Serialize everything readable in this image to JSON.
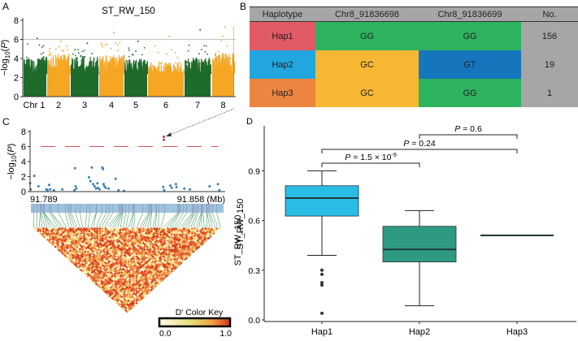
{
  "panel_labels": {
    "a": "A",
    "b": "B",
    "c": "C",
    "d": "D"
  },
  "colors": {
    "green_dark": "#1e6b2a",
    "orange": "#f5a623",
    "threshold_gray": "#b0b0b0",
    "red_dash": "#d9534f",
    "blue_point": "#3d7fb5",
    "sig_point": "#c0504d",
    "hap1_box": "#29bde6",
    "hap2_box": "#2e9a82"
  },
  "table": {
    "headers": [
      "Haplotype",
      "Chr8_91836698",
      "Chr8_91836699",
      "No."
    ],
    "rows": [
      {
        "cells": [
          "Hap1",
          "GG",
          "GG",
          "156"
        ],
        "colors": [
          "#e05a66",
          "#2db35e",
          "#2db35e",
          "#a6a6a6"
        ]
      },
      {
        "cells": [
          "Hap2",
          "GC",
          "GT",
          "19"
        ],
        "colors": [
          "#22a6e0",
          "#f7b733",
          "#1576bd",
          "#a6a6a6"
        ]
      },
      {
        "cells": [
          "Hap3",
          "GC",
          "GG",
          "1"
        ],
        "colors": [
          "#ec8540",
          "#f7b733",
          "#2db35e",
          "#a6a6a6"
        ]
      }
    ]
  },
  "chart_data": [
    {
      "id": "A",
      "type": "scatter",
      "title": "ST_RW_150",
      "xlabel": "",
      "ylabel": "-log10(P)",
      "ylim": [
        0,
        8
      ],
      "yticks": [
        "0",
        "2",
        "4",
        "6",
        "8"
      ],
      "threshold": 6,
      "chromosomes": [
        {
          "label": "Chr 1",
          "color": "green",
          "typical_max": 3.6,
          "peak": 6.1
        },
        {
          "label": "2",
          "color": "orange",
          "typical_max": 3.9,
          "peak": 5.8
        },
        {
          "label": "3",
          "color": "green",
          "typical_max": 3.7,
          "peak": 5.6
        },
        {
          "label": "4",
          "color": "orange",
          "typical_max": 3.8,
          "peak": 6.7
        },
        {
          "label": "5",
          "color": "green",
          "typical_max": 3.4,
          "peak": 5.8
        },
        {
          "label": "6",
          "color": "orange",
          "typical_max": 3.0,
          "peak": 6.3
        },
        {
          "label": "7",
          "color": "green",
          "typical_max": 3.5,
          "peak": 7.0
        },
        {
          "label": "8",
          "color": "orange",
          "typical_max": 4.0,
          "peak": 7.3
        }
      ]
    },
    {
      "id": "C",
      "type": "scatter",
      "xlabel": "",
      "ylabel": "-log10(P)",
      "ylim": [
        0,
        8
      ],
      "yticks": [
        "0",
        "2",
        "4",
        "6",
        "8"
      ],
      "x_range_label_left": "91.789",
      "x_range_label_right": "91.858 (Mb)",
      "xlim": [
        91.789,
        91.858
      ],
      "threshold": 6,
      "significant_points": [
        {
          "x": 91.8367,
          "y": 7.3
        },
        {
          "x": 91.8367,
          "y": 6.9
        }
      ],
      "points": [
        {
          "x": 91.789,
          "y": 1.1
        },
        {
          "x": 91.7892,
          "y": 0.3
        },
        {
          "x": 91.7905,
          "y": 2.1
        },
        {
          "x": 91.792,
          "y": 0.7
        },
        {
          "x": 91.7948,
          "y": 0.3
        },
        {
          "x": 91.7952,
          "y": 0.2
        },
        {
          "x": 91.7958,
          "y": 0.9
        },
        {
          "x": 91.7962,
          "y": 0.3
        },
        {
          "x": 91.7975,
          "y": 0.2
        },
        {
          "x": 91.8005,
          "y": 0.3
        },
        {
          "x": 91.805,
          "y": 3.1
        },
        {
          "x": 91.8052,
          "y": 0.7
        },
        {
          "x": 91.8055,
          "y": 0.4
        },
        {
          "x": 91.8048,
          "y": 0.2
        },
        {
          "x": 91.81,
          "y": 1.9
        },
        {
          "x": 91.8105,
          "y": 1.4
        },
        {
          "x": 91.811,
          "y": 3.2
        },
        {
          "x": 91.8115,
          "y": 1.0
        },
        {
          "x": 91.812,
          "y": 0.7
        },
        {
          "x": 91.8125,
          "y": 0.4
        },
        {
          "x": 91.813,
          "y": 1.1
        },
        {
          "x": 91.8132,
          "y": 0.5
        },
        {
          "x": 91.8138,
          "y": 0.3
        },
        {
          "x": 91.8148,
          "y": 3.2
        },
        {
          "x": 91.815,
          "y": 3.0
        },
        {
          "x": 91.8152,
          "y": 1.0
        },
        {
          "x": 91.8155,
          "y": 0.7
        },
        {
          "x": 91.816,
          "y": 0.5
        },
        {
          "x": 91.817,
          "y": 0.4
        },
        {
          "x": 91.8195,
          "y": 1.7
        },
        {
          "x": 91.8205,
          "y": 0.2
        },
        {
          "x": 91.8225,
          "y": 0.1
        },
        {
          "x": 91.8365,
          "y": 0.6
        },
        {
          "x": 91.8368,
          "y": 0.2
        },
        {
          "x": 91.839,
          "y": 0.8
        },
        {
          "x": 91.8395,
          "y": 0.5
        },
        {
          "x": 91.841,
          "y": 1.0
        },
        {
          "x": 91.8412,
          "y": 0.6
        },
        {
          "x": 91.844,
          "y": 0.4
        },
        {
          "x": 91.846,
          "y": 0.3
        },
        {
          "x": 91.853,
          "y": 0.7
        },
        {
          "x": 91.856,
          "y": 1.0
        },
        {
          "x": 91.8565,
          "y": 0.2
        }
      ]
    },
    {
      "id": "C-LD",
      "type": "heatmap",
      "title": "D' Color Key",
      "scale_min_label": "0.0",
      "scale_max_label": "1.0",
      "scale_colors": [
        "#fffbe8",
        "#e8dd7a",
        "#f0a040",
        "#d93020"
      ],
      "side_label": "ST_RW_150"
    },
    {
      "id": "D",
      "type": "box",
      "xlabel": "",
      "ylabel": "ST_RW_150",
      "ylim": [
        0,
        1.0
      ],
      "yticks": [
        "0.0",
        "0.3",
        "0.6",
        "0.9"
      ],
      "categories": [
        "Hap1",
        "Hap2",
        "Hap3"
      ],
      "boxes": [
        {
          "name": "Hap1",
          "whisker_low": 0.39,
          "q1": 0.627,
          "median": 0.735,
          "q3": 0.81,
          "whisker_high": 0.9,
          "outliers": [
            0.3,
            0.275,
            0.225,
            0.21,
            0.04
          ]
        },
        {
          "name": "Hap2",
          "whisker_low": 0.085,
          "q1": 0.35,
          "median": 0.425,
          "q3": 0.565,
          "whisker_high": 0.66,
          "outliers": []
        },
        {
          "name": "Hap3",
          "whisker_low": 0.51,
          "q1": 0.51,
          "median": 0.51,
          "q3": 0.51,
          "whisker_high": 0.51,
          "outliers": []
        }
      ],
      "comparisons": [
        {
          "from": "Hap1",
          "to": "Hap2",
          "label": "P = 1.5 × 10",
          "exp": "-9"
        },
        {
          "from": "Hap1",
          "to": "Hap3",
          "label": "P = 0.24",
          "exp": ""
        },
        {
          "from": "Hap2",
          "to": "Hap3",
          "label": "P = 0.6",
          "exp": ""
        }
      ]
    }
  ]
}
